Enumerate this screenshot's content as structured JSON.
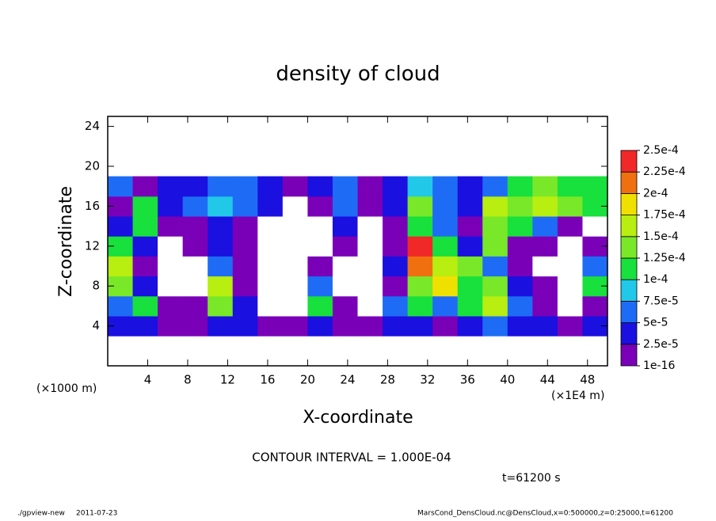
{
  "chart_data": {
    "type": "heatmap",
    "title": "density of cloud",
    "x_label": "X-coordinate",
    "y_label": "Z-coordinate",
    "x_unit_label": "(×1E4 m)",
    "y_unit_label": "(×1000 m)",
    "annotation": "CONTOUR INTERVAL = 1.000E-04",
    "time_label": "t=61200 s",
    "footer_left": "./gpview-new",
    "footer_date": "2011-07-23",
    "footer_right": "MarsCond_DensCloud.nc@DensCloud,x=0:500000,z=0:25000,t=61200",
    "xlim": [
      0,
      50
    ],
    "ylim": [
      0,
      25
    ],
    "xticks": [
      4,
      8,
      12,
      16,
      20,
      24,
      28,
      32,
      36,
      40,
      44,
      48
    ],
    "yticks": [
      4,
      8,
      12,
      16,
      20,
      24
    ],
    "x_edges": [
      0,
      2.5,
      5,
      7.5,
      10,
      12.5,
      15,
      17.5,
      20,
      22.5,
      25,
      27.5,
      30,
      32.5,
      35,
      37.5,
      40,
      42.5,
      45,
      47.5,
      50
    ],
    "z_edges": [
      3,
      5,
      7,
      9,
      11,
      13,
      15,
      17,
      19
    ],
    "values": [
      [
        3e-05,
        3e-05,
        1e-05,
        1e-05,
        3e-05,
        3e-05,
        1e-05,
        1e-05,
        3e-05,
        1e-05,
        1e-05,
        3e-05,
        3e-05,
        1e-05,
        3e-05,
        6e-05,
        3e-05,
        3e-05,
        1e-05,
        3e-05
      ],
      [
        6e-05,
        0.00011,
        1e-05,
        1e-05,
        0.00014,
        3e-05,
        0,
        0,
        0.00011,
        1e-05,
        0,
        6e-05,
        0.00011,
        6e-05,
        0.00011,
        0.00016,
        6e-05,
        1e-05,
        0,
        1e-05
      ],
      [
        0.00014,
        3e-05,
        0,
        0,
        0.00016,
        1e-05,
        0,
        0,
        6e-05,
        0,
        0,
        1e-05,
        0.00014,
        0.00018,
        0.00011,
        0.00014,
        3e-05,
        1e-05,
        0,
        0.00011
      ],
      [
        0.00016,
        1e-05,
        0,
        0,
        6e-05,
        1e-05,
        0,
        0,
        1e-05,
        0,
        0,
        3e-05,
        0.00021,
        0.00016,
        0.00014,
        6e-05,
        1e-05,
        0,
        0,
        6e-05
      ],
      [
        0.00011,
        3e-05,
        0,
        1e-05,
        3e-05,
        1e-05,
        0,
        0,
        0,
        1e-05,
        0,
        1e-05,
        0.00024,
        0.00011,
        3e-05,
        0.00014,
        1e-05,
        1e-05,
        0,
        1e-05
      ],
      [
        3e-05,
        0.00011,
        1e-05,
        1e-05,
        3e-05,
        1e-05,
        0,
        0,
        0,
        3e-05,
        0,
        1e-05,
        0.00011,
        6e-05,
        1e-05,
        0.00014,
        0.00011,
        6e-05,
        1e-05,
        0
      ],
      [
        1e-05,
        0.00011,
        3e-05,
        6e-05,
        9e-05,
        6e-05,
        3e-05,
        0,
        1e-05,
        6e-05,
        1e-05,
        3e-05,
        0.00014,
        6e-05,
        3e-05,
        0.00016,
        0.00014,
        0.00016,
        0.00014,
        0.0001
      ],
      [
        6e-05,
        1e-05,
        3e-05,
        3e-05,
        6e-05,
        6e-05,
        3e-05,
        1e-05,
        3e-05,
        6e-05,
        1e-05,
        3e-05,
        9e-05,
        6e-05,
        3e-05,
        6e-05,
        0.00011,
        0.00014,
        0.00011,
        0.00011
      ]
    ],
    "colorbar_ticks": [
      {
        "value": 1e-16,
        "label": "1e-16"
      },
      {
        "value": 2.5e-05,
        "label": "2.5e-5"
      },
      {
        "value": 5e-05,
        "label": "5e-5"
      },
      {
        "value": 7.5e-05,
        "label": "7.5e-5"
      },
      {
        "value": 0.0001,
        "label": "1e-4"
      },
      {
        "value": 0.000125,
        "label": "1.25e-4"
      },
      {
        "value": 0.00015,
        "label": "1.5e-4"
      },
      {
        "value": 0.000175,
        "label": "1.75e-4"
      },
      {
        "value": 0.0002,
        "label": "2e-4"
      },
      {
        "value": 0.000225,
        "label": "2.25e-4"
      },
      {
        "value": 0.00025,
        "label": "2.5e-4"
      }
    ],
    "colors": [
      "#7a00b8",
      "#1a10e0",
      "#1e6cf5",
      "#22c8e8",
      "#18e03c",
      "#78e828",
      "#b8ee10",
      "#f0e000",
      "#f07010",
      "#f02828"
    ]
  }
}
